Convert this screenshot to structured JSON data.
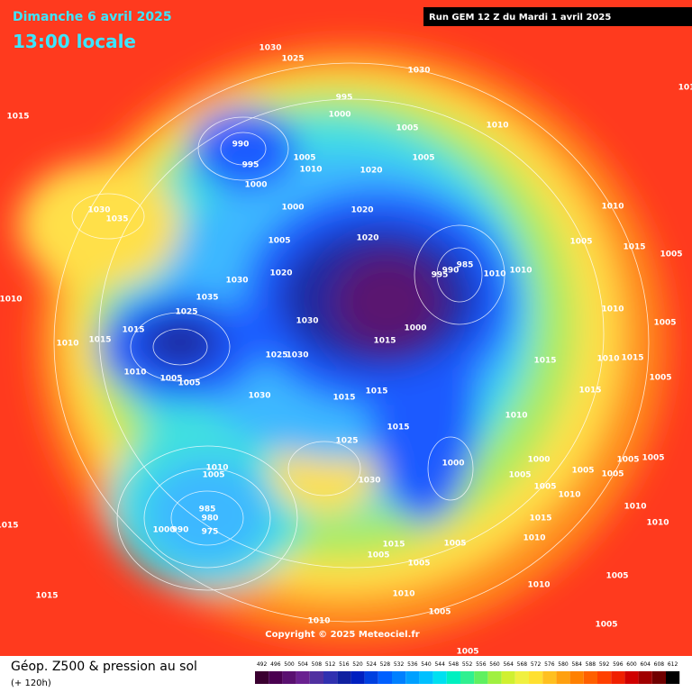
{
  "header": {
    "title": "Dimanche 6 avril 2025",
    "time": "13:00 locale",
    "run": "Run GEM 12 Z du Mardi 1 avril 2025"
  },
  "copyright": "Copyright © 2025 Meteociel.fr",
  "footer": {
    "label": "Géop. Z500 & pression au sol",
    "lead": "(+ 120h)"
  },
  "scale": {
    "values": [
      492,
      496,
      500,
      504,
      508,
      512,
      516,
      520,
      524,
      528,
      532,
      536,
      540,
      544,
      548,
      552,
      556,
      560,
      564,
      568,
      572,
      576,
      580,
      584,
      588,
      592,
      596,
      600,
      604,
      608,
      612
    ],
    "colors": [
      "#3a0030",
      "#4a0050",
      "#5a1070",
      "#6a2090",
      "#5030a0",
      "#3030b0",
      "#1020a0",
      "#0020c0",
      "#0040e0",
      "#0060ff",
      "#0080ff",
      "#00a0ff",
      "#00c0ff",
      "#00e0f0",
      "#00f0c0",
      "#30f090",
      "#60f060",
      "#a0f040",
      "#d0f030",
      "#f0f040",
      "#ffe030",
      "#ffc020",
      "#ffa010",
      "#ff8000",
      "#ff6000",
      "#ff4000",
      "#f02000",
      "#d00000",
      "#a00000",
      "#700000",
      "#000000"
    ]
  },
  "isobar_labels": [
    1030,
    1025,
    1030,
    1015,
    995,
    1000,
    1005,
    990,
    995,
    1005,
    1010,
    1020,
    1005,
    1010,
    1000,
    1000,
    1020,
    1030,
    1035,
    1005,
    1020,
    985,
    995,
    990,
    1010,
    1010,
    1010,
    1005,
    1015,
    1005,
    1020,
    1030,
    1035,
    1010,
    1025,
    1015,
    1010,
    1005,
    1030,
    1000,
    1015,
    1015,
    1010,
    1025,
    1030,
    1010,
    1005,
    1005,
    1015,
    1010,
    1015,
    1005,
    1015,
    1015,
    1030,
    1015,
    1010,
    1015,
    1025,
    1010,
    1005,
    1030,
    1000,
    1000,
    1005,
    1005,
    1005,
    1005,
    1005,
    1005,
    1010,
    985,
    980,
    1000,
    990,
    975,
    1015,
    1015,
    1010,
    1010,
    1010,
    1015,
    1005,
    1005,
    1005,
    1015,
    1010,
    1010,
    1005,
    1005,
    1005,
    1010,
    1005,
    101
  ]
}
